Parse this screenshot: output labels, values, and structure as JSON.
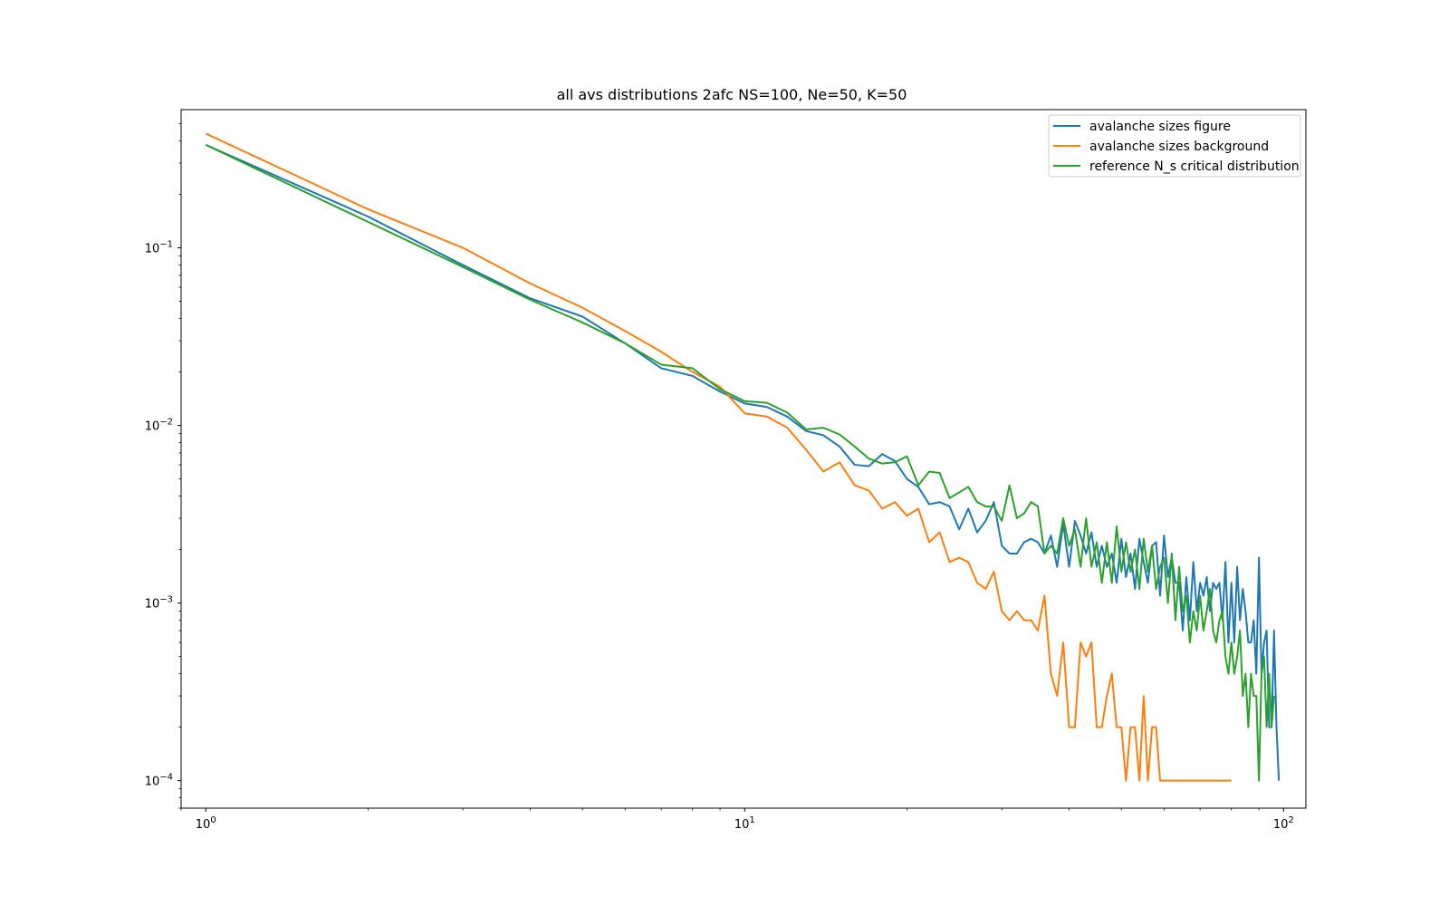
{
  "chart_data": {
    "type": "line",
    "title": "all avs distributions 2afc NS=100, Ne=50, K=50",
    "xlabel": "",
    "ylabel": "",
    "xscale": "log",
    "yscale": "log",
    "xlim": [
      0.9,
      110
    ],
    "ylim": [
      7e-05,
      0.6
    ],
    "x_ticks": [
      {
        "value": 1,
        "base": "10",
        "exp": "0"
      },
      {
        "value": 10,
        "base": "10",
        "exp": "1"
      },
      {
        "value": 100,
        "base": "10",
        "exp": "2"
      }
    ],
    "y_ticks": [
      {
        "value": 0.1,
        "base": "10",
        "exp": "−1"
      },
      {
        "value": 0.01,
        "base": "10",
        "exp": "−2"
      },
      {
        "value": 0.001,
        "base": "10",
        "exp": "−3"
      },
      {
        "value": 0.0001,
        "base": "10",
        "exp": "−4"
      }
    ],
    "legend_position": "top-right",
    "series": [
      {
        "name": "avalanche sizes figure",
        "color": "#1f77b4",
        "points": [
          [
            1,
            0.38
          ],
          [
            2,
            0.15
          ],
          [
            3,
            0.08
          ],
          [
            4,
            0.052
          ],
          [
            5,
            0.041
          ],
          [
            6,
            0.029
          ],
          [
            7,
            0.021
          ],
          [
            8,
            0.019
          ],
          [
            9,
            0.0155
          ],
          [
            10,
            0.0133
          ],
          [
            11,
            0.0127
          ],
          [
            12,
            0.0112
          ],
          [
            13,
            0.0093
          ],
          [
            14,
            0.0088
          ],
          [
            15,
            0.0076
          ],
          [
            16,
            0.006
          ],
          [
            17,
            0.0059
          ],
          [
            18,
            0.0069
          ],
          [
            19,
            0.0063
          ],
          [
            20,
            0.005
          ],
          [
            21,
            0.0045
          ],
          [
            22,
            0.0036
          ],
          [
            23,
            0.0037
          ],
          [
            24,
            0.0035
          ],
          [
            25,
            0.0026
          ],
          [
            26,
            0.0034
          ],
          [
            27,
            0.0025
          ],
          [
            28,
            0.0029
          ],
          [
            29,
            0.0037
          ],
          [
            30,
            0.0021
          ],
          [
            31,
            0.0019
          ],
          [
            32,
            0.0019
          ],
          [
            33,
            0.0022
          ],
          [
            34,
            0.0023
          ],
          [
            35,
            0.0022
          ],
          [
            36,
            0.0019
          ],
          [
            37,
            0.0024
          ],
          [
            38,
            0.0016
          ],
          [
            39,
            0.0028
          ],
          [
            40,
            0.0016
          ],
          [
            41,
            0.0029
          ],
          [
            42,
            0.0024
          ],
          [
            43,
            0.0019
          ],
          [
            44,
            0.0025
          ],
          [
            45,
            0.0016
          ],
          [
            46,
            0.0021
          ],
          [
            47,
            0.0016
          ],
          [
            48,
            0.0019
          ],
          [
            49,
            0.0013
          ],
          [
            50,
            0.0023
          ],
          [
            51,
            0.0014
          ],
          [
            52,
            0.0019
          ],
          [
            53,
            0.0012
          ],
          [
            54,
            0.0023
          ],
          [
            55,
            0.0017
          ],
          [
            56,
            0.0013
          ],
          [
            57,
            0.0021
          ],
          [
            58,
            0.0022
          ],
          [
            59,
            0.0011
          ],
          [
            60,
            0.0024
          ],
          [
            61,
            0.0014
          ],
          [
            62,
            0.0018
          ],
          [
            63,
            0.0013
          ],
          [
            64,
            0.0013
          ],
          [
            65,
            0.0007
          ],
          [
            66,
            0.0014
          ],
          [
            67,
            0.0008
          ],
          [
            68,
            0.0017
          ],
          [
            69,
            0.0009
          ],
          [
            70,
            0.0013
          ],
          [
            71,
            0.0011
          ],
          [
            72,
            0.0014
          ],
          [
            73,
            0.0009
          ],
          [
            74,
            0.0013
          ],
          [
            75,
            0.0012
          ],
          [
            76,
            0.0013
          ],
          [
            77,
            0.0008
          ],
          [
            78,
            0.0017
          ],
          [
            79,
            0.0006
          ],
          [
            80,
            0.0013
          ],
          [
            81,
            0.0006
          ],
          [
            82,
            0.0016
          ],
          [
            83,
            0.0008
          ],
          [
            84,
            0.0012
          ],
          [
            85,
            0.0009
          ],
          [
            86,
            0.0006
          ],
          [
            87,
            0.0006
          ],
          [
            88,
            0.0008
          ],
          [
            89,
            0.0004
          ],
          [
            90,
            0.0018
          ],
          [
            91,
            0.0004
          ],
          [
            92,
            0.0006
          ],
          [
            93,
            0.0007
          ],
          [
            94,
            0.0002
          ],
          [
            95,
            0.0002
          ],
          [
            96,
            0.0007
          ],
          [
            97,
            0.0002
          ],
          [
            98,
            0.0001
          ]
        ]
      },
      {
        "name": "avalanche sizes background",
        "color": "#ff7f0e",
        "points": [
          [
            1,
            0.44
          ],
          [
            2,
            0.165
          ],
          [
            3,
            0.1
          ],
          [
            4,
            0.063
          ],
          [
            5,
            0.046
          ],
          [
            6,
            0.034
          ],
          [
            7,
            0.026
          ],
          [
            8,
            0.02
          ],
          [
            9,
            0.0165
          ],
          [
            10,
            0.0117
          ],
          [
            11,
            0.0112
          ],
          [
            12,
            0.0097
          ],
          [
            13,
            0.0073
          ],
          [
            14,
            0.0055
          ],
          [
            15,
            0.0062
          ],
          [
            16,
            0.0046
          ],
          [
            17,
            0.0043
          ],
          [
            18,
            0.0034
          ],
          [
            19,
            0.0037
          ],
          [
            20,
            0.0031
          ],
          [
            21,
            0.0034
          ],
          [
            22,
            0.0022
          ],
          [
            23,
            0.0025
          ],
          [
            24,
            0.0017
          ],
          [
            25,
            0.0018
          ],
          [
            26,
            0.0017
          ],
          [
            27,
            0.0013
          ],
          [
            28,
            0.0012
          ],
          [
            29,
            0.0015
          ],
          [
            30,
            0.0009
          ],
          [
            31,
            0.0008
          ],
          [
            32,
            0.0009
          ],
          [
            33,
            0.0008
          ],
          [
            34,
            0.0008
          ],
          [
            35,
            0.0007
          ],
          [
            36,
            0.0011
          ],
          [
            37,
            0.0004
          ],
          [
            38,
            0.0003
          ],
          [
            39,
            0.0006
          ],
          [
            40,
            0.0002
          ],
          [
            41,
            0.0002
          ],
          [
            42,
            0.0006
          ],
          [
            43,
            0.0005
          ],
          [
            44,
            0.0006
          ],
          [
            45,
            0.0002
          ],
          [
            46,
            0.0002
          ],
          [
            47,
            0.0003
          ],
          [
            48,
            0.0004
          ],
          [
            49,
            0.0002
          ],
          [
            50,
            0.0002
          ],
          [
            51,
            0.0001
          ],
          [
            52,
            0.0002
          ],
          [
            53,
            0.0002
          ],
          [
            54,
            0.0001
          ],
          [
            55,
            0.0003
          ],
          [
            56,
            0.0001
          ],
          [
            57,
            0.0002
          ],
          [
            58,
            0.0002
          ],
          [
            59,
            0.0001
          ],
          [
            60,
            0.0001
          ],
          [
            65,
            0.0001
          ],
          [
            70,
            0.0001
          ],
          [
            75,
            0.0001
          ],
          [
            80,
            0.0001
          ]
        ]
      },
      {
        "name": "reference N_s critical distribution",
        "color": "#2ca02c",
        "points": [
          [
            1,
            0.38
          ],
          [
            2,
            0.14
          ],
          [
            3,
            0.078
          ],
          [
            4,
            0.051
          ],
          [
            5,
            0.038
          ],
          [
            6,
            0.029
          ],
          [
            7,
            0.022
          ],
          [
            8,
            0.021
          ],
          [
            9,
            0.016
          ],
          [
            10,
            0.0137
          ],
          [
            11,
            0.0134
          ],
          [
            12,
            0.0118
          ],
          [
            13,
            0.0095
          ],
          [
            14,
            0.0097
          ],
          [
            15,
            0.0089
          ],
          [
            16,
            0.0076
          ],
          [
            17,
            0.0065
          ],
          [
            18,
            0.0061
          ],
          [
            19,
            0.0062
          ],
          [
            20,
            0.0067
          ],
          [
            21,
            0.0046
          ],
          [
            22,
            0.0055
          ],
          [
            23,
            0.0054
          ],
          [
            24,
            0.0039
          ],
          [
            25,
            0.0042
          ],
          [
            26,
            0.0045
          ],
          [
            27,
            0.0037
          ],
          [
            28,
            0.0035
          ],
          [
            29,
            0.0035
          ],
          [
            30,
            0.0029
          ],
          [
            31,
            0.0046
          ],
          [
            32,
            0.003
          ],
          [
            33,
            0.0032
          ],
          [
            34,
            0.0037
          ],
          [
            35,
            0.0035
          ],
          [
            36,
            0.0019
          ],
          [
            37,
            0.0021
          ],
          [
            38,
            0.0019
          ],
          [
            39,
            0.003
          ],
          [
            40,
            0.0021
          ],
          [
            41,
            0.0026
          ],
          [
            42,
            0.0016
          ],
          [
            43,
            0.003
          ],
          [
            44,
            0.0016
          ],
          [
            45,
            0.0022
          ],
          [
            46,
            0.0013
          ],
          [
            47,
            0.0022
          ],
          [
            48,
            0.0013
          ],
          [
            49,
            0.0027
          ],
          [
            50,
            0.0015
          ],
          [
            51,
            0.0022
          ],
          [
            52,
            0.0015
          ],
          [
            53,
            0.002
          ],
          [
            54,
            0.0012
          ],
          [
            55,
            0.0023
          ],
          [
            56,
            0.0015
          ],
          [
            57,
            0.0021
          ],
          [
            58,
            0.0012
          ],
          [
            59,
            0.0016
          ],
          [
            60,
            0.0018
          ],
          [
            61,
            0.001
          ],
          [
            62,
            0.0019
          ],
          [
            63,
            0.0008
          ],
          [
            64,
            0.0016
          ],
          [
            65,
            0.0009
          ],
          [
            66,
            0.0011
          ],
          [
            67,
            0.0006
          ],
          [
            68,
            0.0009
          ],
          [
            69,
            0.0007
          ],
          [
            70,
            0.0011
          ],
          [
            71,
            0.0007
          ],
          [
            72,
            0.0009
          ],
          [
            73,
            0.0012
          ],
          [
            74,
            0.0007
          ],
          [
            75,
            0.0006
          ],
          [
            76,
            0.0008
          ],
          [
            77,
            0.0009
          ],
          [
            78,
            0.0005
          ],
          [
            79,
            0.0004
          ],
          [
            80,
            0.0006
          ],
          [
            81,
            0.0004
          ],
          [
            82,
            0.0005
          ],
          [
            83,
            0.0007
          ],
          [
            84,
            0.0003
          ],
          [
            85,
            0.0004
          ],
          [
            86,
            0.0002
          ],
          [
            87,
            0.0004
          ],
          [
            88,
            0.0003
          ],
          [
            89,
            0.0003
          ],
          [
            90,
            0.0001
          ],
          [
            91,
            0.0004
          ],
          [
            92,
            0.0005
          ],
          [
            93,
            0.0002
          ],
          [
            94,
            0.0004
          ],
          [
            95,
            0.0002
          ],
          [
            96,
            0.0003
          ]
        ]
      }
    ]
  }
}
